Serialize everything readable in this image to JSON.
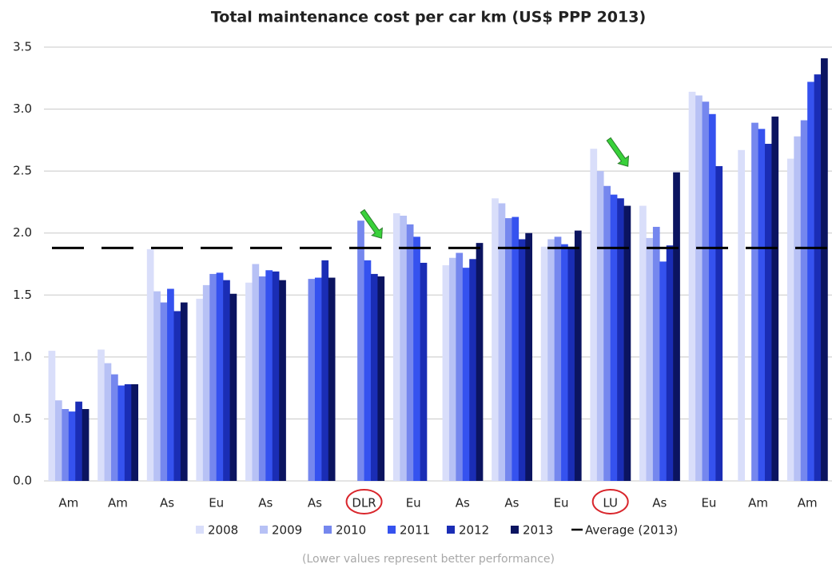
{
  "chart_data": {
    "type": "bar",
    "title": "Total maintenance cost per car km (US$ PPP 2013)",
    "note": "(Lower values represent better performance)",
    "categories": [
      "Am",
      "Am",
      "As",
      "Eu",
      "As",
      "As",
      "DLR",
      "Eu",
      "As",
      "As",
      "Eu",
      "LU",
      "As",
      "Eu",
      "Am",
      "Am"
    ],
    "highlight_indices": [
      6,
      11
    ],
    "series": [
      {
        "name": "2008",
        "color": "#d9defa",
        "values": [
          1.05,
          1.06,
          1.87,
          1.47,
          1.6,
          null,
          null,
          2.16,
          1.74,
          2.28,
          1.89,
          2.68,
          2.22,
          3.14,
          2.67,
          2.6
        ]
      },
      {
        "name": "2009",
        "color": "#b7c1f5",
        "values": [
          0.65,
          0.95,
          1.53,
          1.58,
          1.75,
          null,
          null,
          2.14,
          1.8,
          2.24,
          1.95,
          2.5,
          1.96,
          3.11,
          null,
          2.78
        ]
      },
      {
        "name": "2010",
        "color": "#7587ee",
        "values": [
          0.58,
          0.86,
          1.44,
          1.67,
          1.65,
          1.63,
          2.1,
          2.07,
          1.84,
          2.12,
          1.97,
          2.38,
          2.05,
          3.06,
          2.89,
          2.91
        ]
      },
      {
        "name": "2011",
        "color": "#3552ef",
        "values": [
          0.56,
          0.77,
          1.55,
          1.68,
          1.7,
          1.64,
          1.78,
          1.97,
          1.72,
          2.13,
          1.91,
          2.31,
          1.77,
          2.96,
          2.84,
          3.22
        ]
      },
      {
        "name": "2012",
        "color": "#1a2db5",
        "values": [
          0.64,
          0.78,
          1.37,
          1.62,
          1.69,
          1.78,
          1.67,
          1.76,
          1.79,
          1.95,
          1.89,
          2.28,
          1.9,
          2.54,
          2.72,
          3.28
        ]
      },
      {
        "name": "2013",
        "color": "#0b1460",
        "values": [
          0.58,
          0.78,
          1.44,
          1.51,
          1.62,
          1.64,
          1.65,
          null,
          1.92,
          2.0,
          2.02,
          2.22,
          2.49,
          null,
          2.94,
          3.41
        ]
      }
    ],
    "average": {
      "name": "Average (2013)",
      "value": 1.88,
      "color": "#000000"
    },
    "ylim": [
      0,
      3.5
    ],
    "yticks": [
      {
        "value": 0,
        "label": "0.0"
      },
      0.5,
      {
        "value": 1,
        "label": "1.0"
      },
      1.5,
      {
        "value": 2,
        "label": "2.0"
      },
      2.5,
      {
        "value": 3,
        "label": "3.0"
      },
      3.5
    ],
    "grid": true
  }
}
